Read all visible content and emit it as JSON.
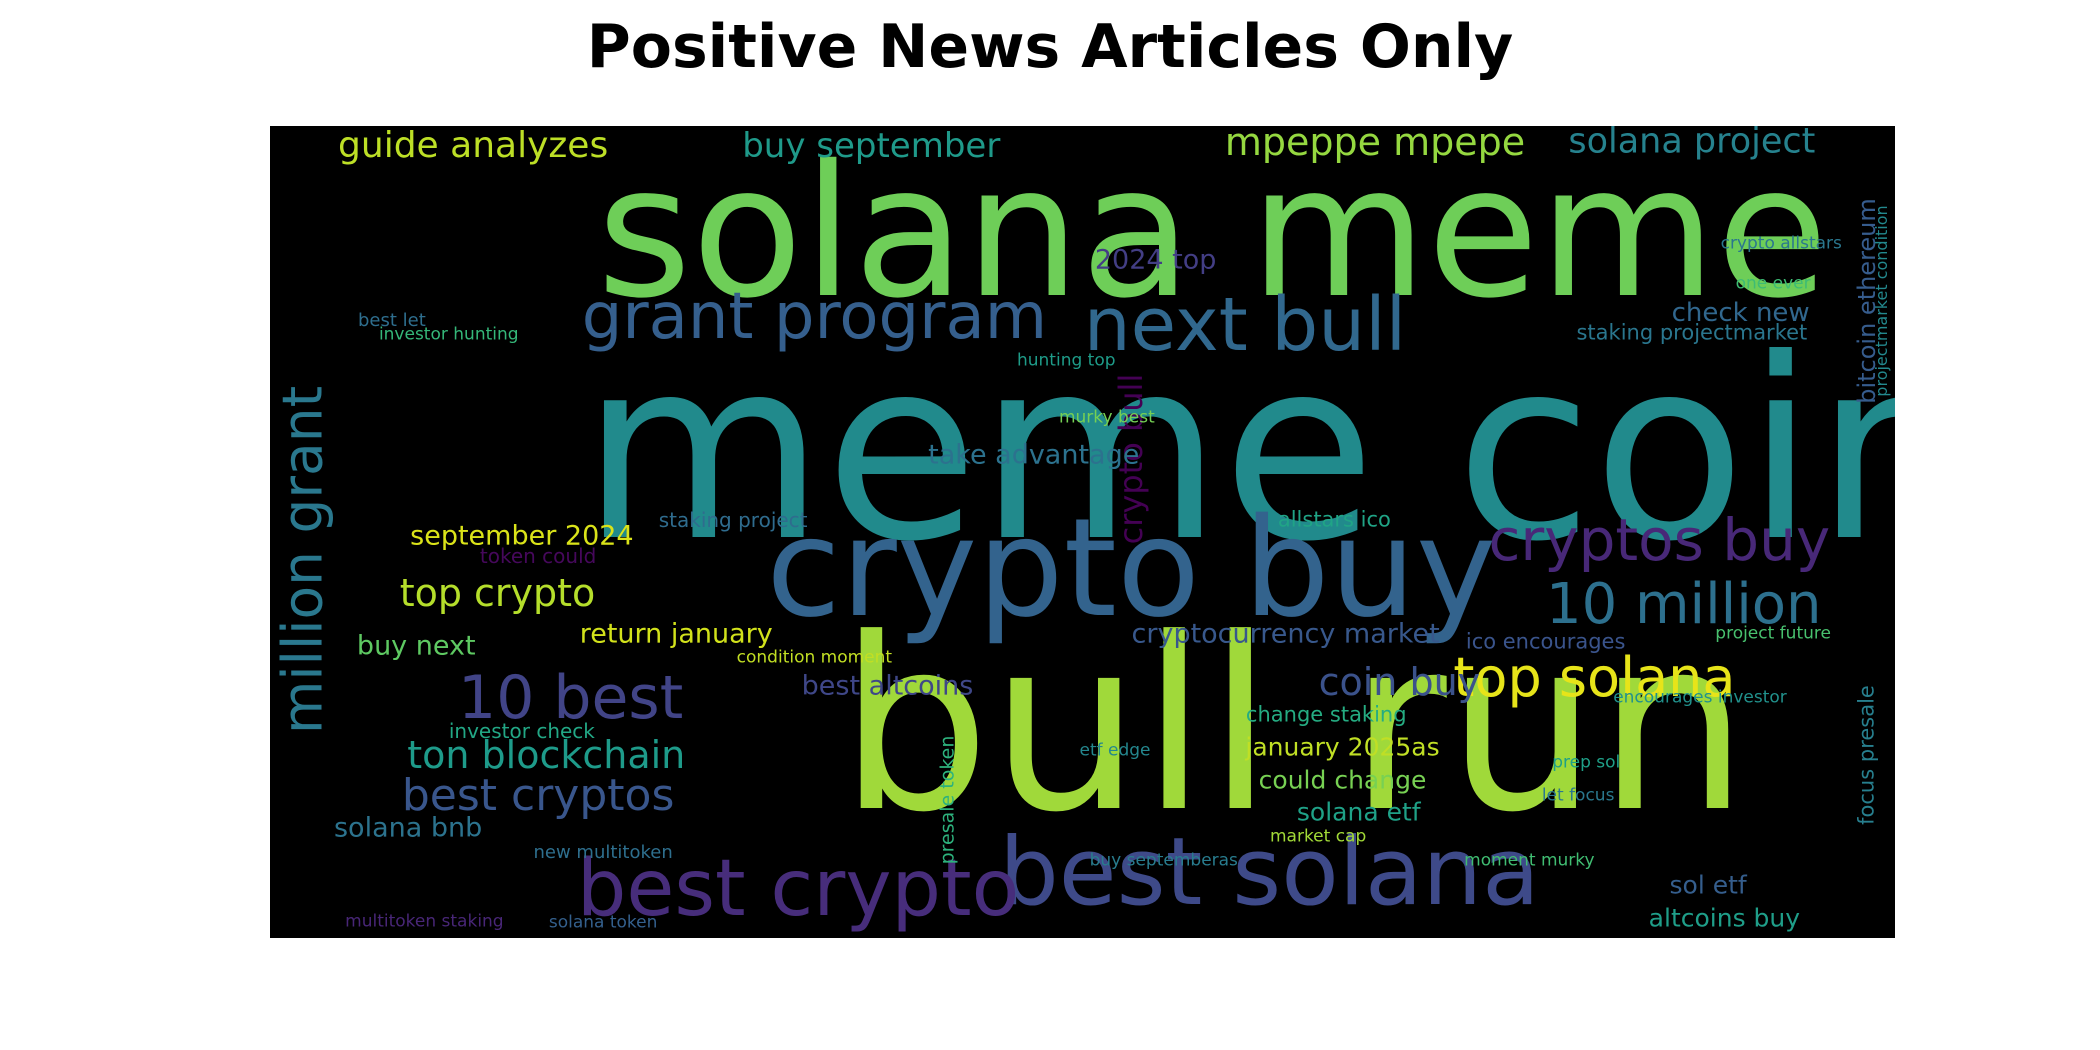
{
  "title": "Positive News Articles Only",
  "word_cloud": {
    "background": "#000000",
    "words": [
      {
        "text": "meme coin",
        "color": "#218a8c"
      },
      {
        "text": "bull run",
        "color": "#a0d93a"
      },
      {
        "text": "solana meme",
        "color": "#6ece58"
      },
      {
        "text": "crypto buy",
        "color": "#33638d"
      },
      {
        "text": "best solana",
        "color": "#3e4a89"
      },
      {
        "text": "best crypto",
        "color": "#472d7b"
      },
      {
        "text": "next bull",
        "color": "#31688e"
      },
      {
        "text": "grant program",
        "color": "#355f8d"
      },
      {
        "text": "million grant",
        "color": "#2a788e"
      },
      {
        "text": "cryptos buy",
        "color": "#482878"
      },
      {
        "text": "10 million",
        "color": "#2d708e"
      },
      {
        "text": "top solana",
        "color": "#e7e419"
      },
      {
        "text": "10 best",
        "color": "#414487"
      },
      {
        "text": "mpeppe mpepe",
        "color": "#95d840"
      },
      {
        "text": "solana project",
        "color": "#26828e"
      },
      {
        "text": "guide analyzes",
        "color": "#bddf26"
      },
      {
        "text": "buy september",
        "color": "#1f9a8a"
      },
      {
        "text": "crypto bull",
        "color": "#440154"
      },
      {
        "text": "top crypto",
        "color": "#b5de2b"
      },
      {
        "text": "ton blockchain",
        "color": "#1e9b8a"
      },
      {
        "text": "best cryptos",
        "color": "#39568c"
      },
      {
        "text": "coin buy",
        "color": "#3b528b"
      },
      {
        "text": "bitcoin ethereum",
        "color": "#365c8d"
      },
      {
        "text": "september 2024",
        "color": "#dae319"
      },
      {
        "text": "return january",
        "color": "#d2e21b"
      },
      {
        "text": "buy next",
        "color": "#5ec962"
      },
      {
        "text": "cryptocurrency market",
        "color": "#38588c"
      },
      {
        "text": "take advantage",
        "color": "#2c728e"
      },
      {
        "text": "2024 top",
        "color": "#433e85"
      },
      {
        "text": "best altcoins",
        "color": "#3f4788"
      },
      {
        "text": "solana bnb",
        "color": "#2c738e"
      },
      {
        "text": "check new",
        "color": "#31678e"
      },
      {
        "text": "staking projectmarket",
        "color": "#2a768e"
      },
      {
        "text": "allstars ico",
        "color": "#20a486"
      },
      {
        "text": "ico encourages",
        "color": "#3a548c"
      },
      {
        "text": "change staking",
        "color": "#25ac82"
      },
      {
        "text": "january 2025as",
        "color": "#c0df25"
      },
      {
        "text": "could change",
        "color": "#77d153"
      },
      {
        "text": "solana etf",
        "color": "#1fa187"
      },
      {
        "text": "sol etf",
        "color": "#355e8d"
      },
      {
        "text": "altcoins buy",
        "color": "#1f9e89"
      },
      {
        "text": "focus presale",
        "color": "#277f8e"
      },
      {
        "text": "presale token",
        "color": "#2db27d"
      },
      {
        "text": "investor check",
        "color": "#22a785"
      },
      {
        "text": "staking project",
        "color": "#2f6c8e"
      },
      {
        "text": "token could",
        "color": "#46085c"
      },
      {
        "text": "condition moment",
        "color": "#c2df23"
      },
      {
        "text": "crypto allstars",
        "color": "#2a778e"
      },
      {
        "text": "one ever",
        "color": "#3dbc74"
      },
      {
        "text": "best let",
        "color": "#2e6e8e"
      },
      {
        "text": "investor hunting",
        "color": "#35b779"
      },
      {
        "text": "hunting top",
        "color": "#1e9c89"
      },
      {
        "text": "murky best",
        "color": "#75d054"
      },
      {
        "text": "project future",
        "color": "#48c16e"
      },
      {
        "text": "encourages investor",
        "color": "#21918c"
      },
      {
        "text": "etf edge",
        "color": "#24878e"
      },
      {
        "text": "prep sol",
        "color": "#1fa088"
      },
      {
        "text": "let focus",
        "color": "#2a788e"
      },
      {
        "text": "market cap",
        "color": "#a2da37"
      },
      {
        "text": "buy septemberas",
        "color": "#287c8e"
      },
      {
        "text": "moment murky",
        "color": "#40bd72"
      },
      {
        "text": "new multitoken",
        "color": "#2e6f8e"
      },
      {
        "text": "multitoken staking",
        "color": "#482677"
      },
      {
        "text": "solana token",
        "color": "#34608d"
      },
      {
        "text": "projectmarket condition",
        "color": "#23898e"
      }
    ]
  }
}
